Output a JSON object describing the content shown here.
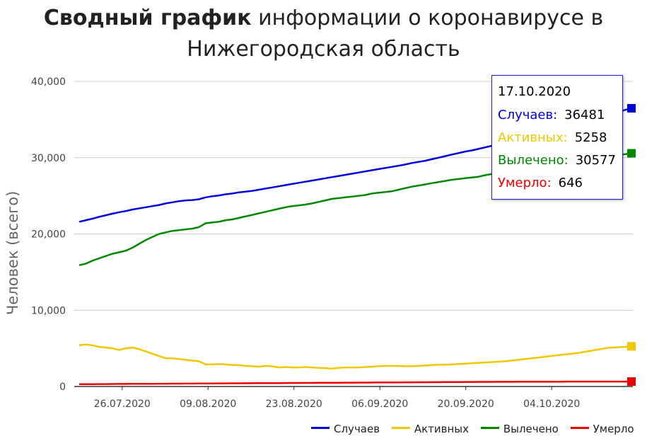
{
  "page": {
    "title_bold": "Сводный график",
    "title_rest": "информации о коронавирусе в Нижегородская область"
  },
  "chart_data": {
    "type": "line",
    "ylabel": "Человек (всего)",
    "ylim": [
      0,
      40000
    ],
    "yticks": [
      "0",
      "10,000",
      "20,000",
      "30,000",
      "40,000"
    ],
    "ytick_values": [
      0,
      10000,
      20000,
      30000,
      40000
    ],
    "xticks": [
      "26.07.2020",
      "09.08.2020",
      "23.08.2020",
      "06.09.2020",
      "20.09.2020",
      "04.10.2020"
    ],
    "x_start": "19.07.2020",
    "x_end": "17.10.2020",
    "grid": true,
    "legend_position": "bottom-right",
    "series": [
      {
        "name": "Случаев",
        "color": "#0000dd",
        "values": [
          21600,
          21800,
          22000,
          22250,
          22450,
          22650,
          22850,
          23000,
          23200,
          23350,
          23500,
          23650,
          23800,
          24000,
          24150,
          24300,
          24400,
          24450,
          24550,
          24800,
          24950,
          25050,
          25200,
          25300,
          25450,
          25550,
          25650,
          25800,
          25950,
          26100,
          26250,
          26400,
          26550,
          26700,
          26850,
          27000,
          27150,
          27300,
          27450,
          27600,
          27750,
          27900,
          28050,
          28200,
          28350,
          28500,
          28650,
          28800,
          28950,
          29100,
          29300,
          29450,
          29600,
          29800,
          30000,
          30200,
          30400,
          30600,
          30800,
          30950,
          31150,
          31350,
          31550,
          31750,
          31950,
          32200,
          32400,
          32650,
          32850,
          33050,
          33300,
          33550,
          33750,
          34000,
          34250,
          34500,
          34750,
          35000,
          35250,
          35500,
          35750,
          36000,
          36250,
          36481
        ]
      },
      {
        "name": "Активных",
        "color": "#f0c800",
        "values": [
          5400,
          5500,
          5400,
          5200,
          5100,
          5000,
          4800,
          5000,
          5100,
          4900,
          4600,
          4300,
          4000,
          3700,
          3700,
          3600,
          3500,
          3400,
          3300,
          2900,
          2900,
          2950,
          2900,
          2800,
          2800,
          2700,
          2650,
          2600,
          2700,
          2650,
          2500,
          2550,
          2500,
          2500,
          2550,
          2500,
          2450,
          2400,
          2350,
          2450,
          2500,
          2500,
          2500,
          2550,
          2600,
          2650,
          2700,
          2700,
          2700,
          2650,
          2650,
          2700,
          2750,
          2800,
          2850,
          2850,
          2900,
          2950,
          3000,
          3050,
          3100,
          3150,
          3200,
          3250,
          3300,
          3400,
          3500,
          3600,
          3700,
          3800,
          3900,
          4000,
          4100,
          4200,
          4300,
          4400,
          4550,
          4700,
          4850,
          5000,
          5100,
          5150,
          5200,
          5258
        ]
      },
      {
        "name": "Вылечено",
        "color": "#008800",
        "values": [
          15900,
          16100,
          16500,
          16800,
          17100,
          17400,
          17600,
          17800,
          18200,
          18700,
          19200,
          19600,
          20000,
          20200,
          20400,
          20500,
          20600,
          20700,
          20900,
          21400,
          21500,
          21600,
          21800,
          21900,
          22100,
          22300,
          22500,
          22700,
          22900,
          23100,
          23300,
          23500,
          23650,
          23750,
          23850,
          24000,
          24200,
          24400,
          24600,
          24700,
          24800,
          24900,
          25000,
          25100,
          25300,
          25400,
          25500,
          25600,
          25800,
          26000,
          26200,
          26350,
          26500,
          26650,
          26800,
          26950,
          27100,
          27200,
          27300,
          27400,
          27500,
          27700,
          27850,
          28000,
          28150,
          28300,
          28450,
          28550,
          28700,
          28850,
          29000,
          29150,
          29250,
          29350,
          29450,
          29550,
          29700,
          29850,
          30000,
          30150,
          30250,
          30350,
          30450,
          30577
        ]
      },
      {
        "name": "Умерло",
        "color": "#ee0000",
        "values": [
          300,
          305,
          310,
          315,
          320,
          325,
          330,
          335,
          340,
          345,
          350,
          355,
          360,
          365,
          370,
          375,
          380,
          385,
          390,
          395,
          400,
          405,
          410,
          415,
          420,
          425,
          430,
          435,
          440,
          445,
          450,
          455,
          460,
          465,
          470,
          475,
          480,
          485,
          490,
          495,
          500,
          505,
          510,
          515,
          520,
          525,
          530,
          535,
          540,
          545,
          550,
          555,
          560,
          565,
          570,
          575,
          580,
          585,
          590,
          595,
          600,
          603,
          606,
          609,
          612,
          615,
          618,
          621,
          624,
          627,
          630,
          632,
          634,
          636,
          638,
          639,
          640,
          641,
          642,
          643,
          644,
          645,
          645,
          646
        ]
      }
    ]
  },
  "tooltip": {
    "date": "17.10.2020",
    "rows": [
      {
        "label": "Случаев:",
        "value": "36481",
        "color": "#0000dd"
      },
      {
        "label": "Активных:",
        "value": "5258",
        "color": "#f0c800"
      },
      {
        "label": "Вылечено:",
        "value": "30577",
        "color": "#008800"
      },
      {
        "label": "Умерло:",
        "value": "646",
        "color": "#ee0000"
      }
    ]
  }
}
